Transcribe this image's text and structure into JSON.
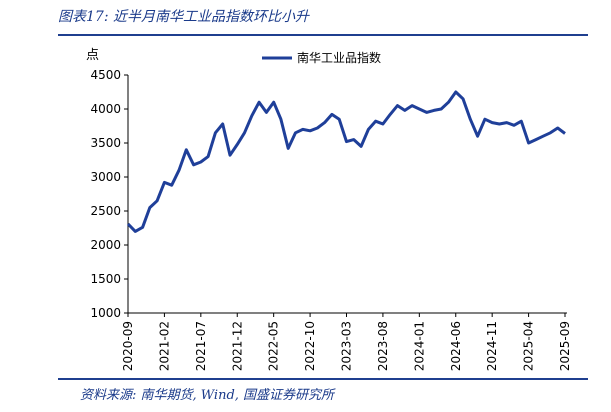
{
  "header": {
    "title": "图表17:  近半月南华工业品指数环比小升"
  },
  "footer": {
    "source": "资料来源:  南华期货,  Wind,  国盛证券研究所"
  },
  "colors": {
    "series": "#1f3f99",
    "rule": "#1f3f8f",
    "title_text": "#1a3a8a"
  },
  "chart_data": {
    "type": "line",
    "title": "",
    "xlabel": "",
    "ylabel": "点",
    "ylim": [
      1000,
      4500
    ],
    "yticks": [
      1000,
      1500,
      2000,
      2500,
      3000,
      3500,
      4000,
      4500
    ],
    "grid": false,
    "legend_position": "top",
    "xtick_labels": [
      "2020-09",
      "2021-02",
      "2021-07",
      "2021-12",
      "2022-05",
      "2022-10",
      "2023-03",
      "2023-08",
      "2024-01",
      "2024-06",
      "2024-11",
      "2025-04",
      "2025-09"
    ],
    "series": [
      {
        "name": "南华工业品指数",
        "x": [
          "2020-09",
          "2020-10",
          "2020-11",
          "2020-12",
          "2021-01",
          "2021-02",
          "2021-03",
          "2021-04",
          "2021-05",
          "2021-06",
          "2021-07",
          "2021-08",
          "2021-09",
          "2021-10",
          "2021-11",
          "2021-12",
          "2022-01",
          "2022-02",
          "2022-03",
          "2022-04",
          "2022-05",
          "2022-06",
          "2022-07",
          "2022-08",
          "2022-09",
          "2022-10",
          "2022-11",
          "2022-12",
          "2023-01",
          "2023-02",
          "2023-03",
          "2023-04",
          "2023-05",
          "2023-06",
          "2023-07",
          "2023-08",
          "2023-09",
          "2023-10",
          "2023-11",
          "2023-12",
          "2024-01",
          "2024-02",
          "2024-03",
          "2024-04",
          "2024-05",
          "2024-06",
          "2024-07",
          "2024-08",
          "2024-09",
          "2024-10",
          "2024-11",
          "2024-12",
          "2025-01",
          "2025-02",
          "2025-03",
          "2025-04",
          "2025-05",
          "2025-06",
          "2025-07",
          "2025-08",
          "2025-09"
        ],
        "values": [
          2310,
          2200,
          2260,
          2550,
          2650,
          2920,
          2880,
          3100,
          3400,
          3180,
          3220,
          3300,
          3650,
          3780,
          3320,
          3480,
          3650,
          3900,
          4100,
          3950,
          4100,
          3850,
          3420,
          3650,
          3700,
          3680,
          3720,
          3800,
          3920,
          3850,
          3520,
          3550,
          3450,
          3700,
          3820,
          3780,
          3920,
          4050,
          3980,
          4050,
          4000,
          3950,
          3980,
          4000,
          4100,
          4250,
          4150,
          3850,
          3600,
          3850,
          3800,
          3780,
          3800,
          3760,
          3820,
          3500,
          3550,
          3600,
          3650,
          3720,
          3640
        ]
      }
    ]
  }
}
